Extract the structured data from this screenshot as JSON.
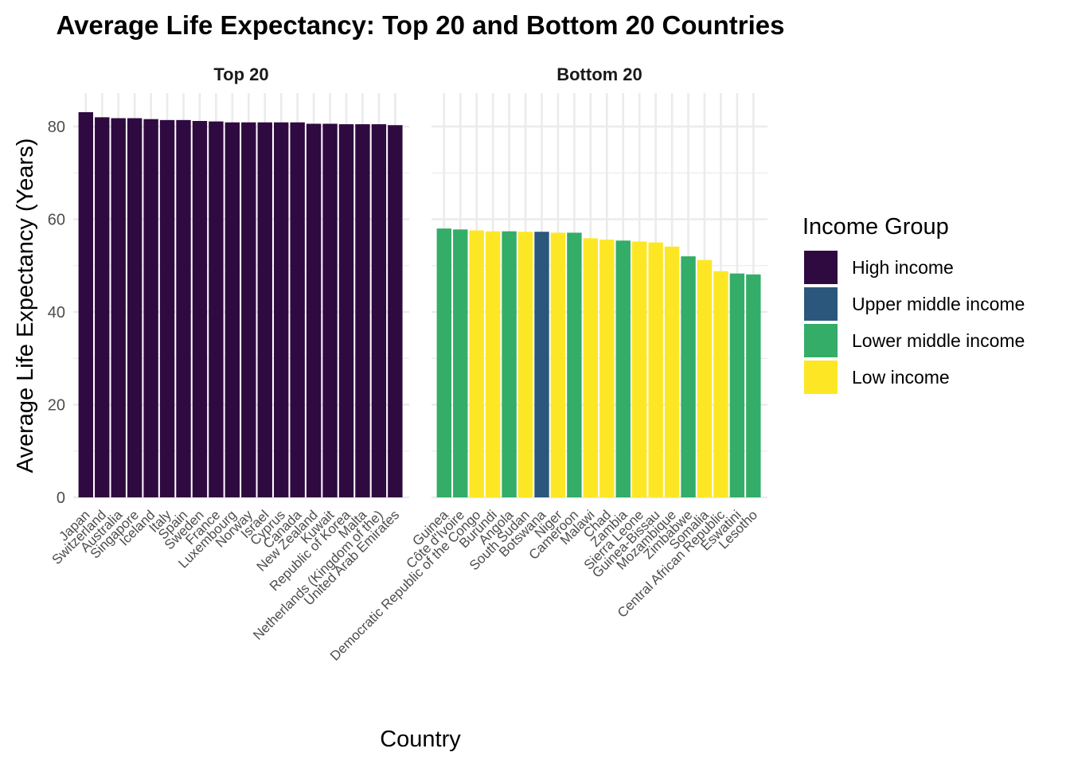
{
  "chart_data": {
    "type": "bar",
    "title": "Average Life Expectancy: Top 20 and Bottom 20 Countries",
    "xlabel": "Country",
    "ylabel": "Average Life Expectancy (Years)",
    "ylim": [
      0,
      85
    ],
    "yticks": [
      0,
      20,
      40,
      60,
      80
    ],
    "grid": true,
    "legend": {
      "title": "Income Group",
      "placement": "right",
      "entries": [
        {
          "label": "High income",
          "color": "#2f0a40"
        },
        {
          "label": "Upper middle income",
          "color": "#2c577c"
        },
        {
          "label": "Lower middle income",
          "color": "#33ad68"
        },
        {
          "label": "Low income",
          "color": "#fde725"
        }
      ]
    },
    "panels": [
      {
        "name": "Top 20",
        "categories": [
          "Japan",
          "Switzerland",
          "Australia",
          "Singapore",
          "Iceland",
          "Italy",
          "Spain",
          "Sweden",
          "France",
          "Luxembourg",
          "Norway",
          "Israel",
          "Cyprus",
          "Canada",
          "New Zealand",
          "Kuwait",
          "Republic of Korea",
          "Malta",
          "Netherlands (Kingdom of the)",
          "United Arab Emirates"
        ],
        "values": [
          83.1,
          82.0,
          81.8,
          81.8,
          81.6,
          81.4,
          81.4,
          81.2,
          81.1,
          80.9,
          80.9,
          80.9,
          80.9,
          80.9,
          80.6,
          80.6,
          80.5,
          80.5,
          80.5,
          80.3
        ],
        "groups": [
          "High income",
          "High income",
          "High income",
          "High income",
          "High income",
          "High income",
          "High income",
          "High income",
          "High income",
          "High income",
          "High income",
          "High income",
          "High income",
          "High income",
          "High income",
          "High income",
          "High income",
          "High income",
          "High income",
          "High income"
        ]
      },
      {
        "name": "Bottom 20",
        "categories": [
          "Guinea",
          "Côte d'Ivoire",
          "Democratic Republic of the Congo",
          "Burundi",
          "Angola",
          "South Sudan",
          "Botswana",
          "Niger",
          "Cameroon",
          "Malawi",
          "Chad",
          "Zambia",
          "Sierra Leone",
          "Guinea-Bissau",
          "Mozambique",
          "Zimbabwe",
          "Somalia",
          "Central African Republic",
          "Eswatini",
          "Lesotho"
        ],
        "values": [
          58.0,
          57.8,
          57.6,
          57.4,
          57.4,
          57.3,
          57.3,
          57.1,
          57.1,
          55.9,
          55.6,
          55.4,
          55.2,
          55.0,
          54.1,
          52.0,
          51.2,
          48.8,
          48.3,
          48.1
        ],
        "groups": [
          "Lower middle income",
          "Lower middle income",
          "Low income",
          "Low income",
          "Lower middle income",
          "Low income",
          "Upper middle income",
          "Low income",
          "Lower middle income",
          "Low income",
          "Low income",
          "Lower middle income",
          "Low income",
          "Low income",
          "Low income",
          "Lower middle income",
          "Low income",
          "Low income",
          "Lower middle income",
          "Lower middle income"
        ]
      }
    ]
  }
}
